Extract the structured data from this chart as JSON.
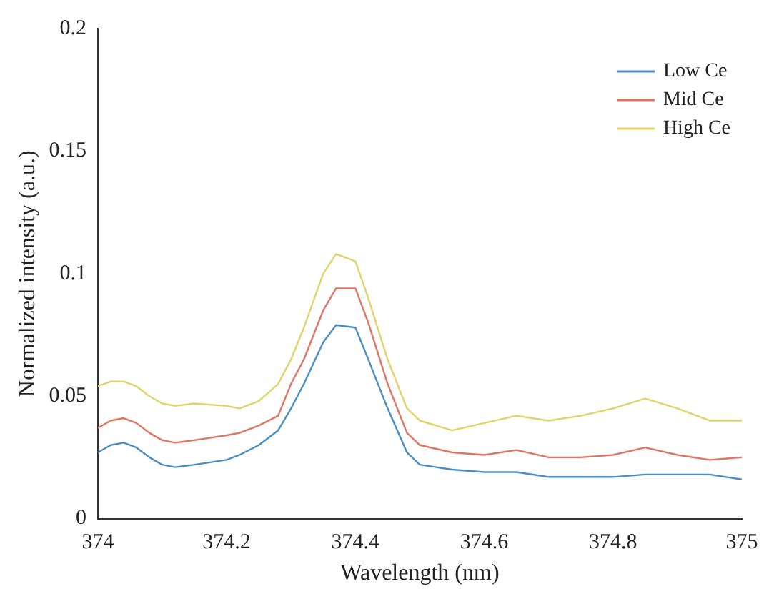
{
  "chart_data": {
    "type": "line",
    "xlabel": "Wavelength (nm)",
    "ylabel": "Normalized intensity (a.u.)",
    "x": [
      374,
      374.02,
      374.04,
      374.06,
      374.08,
      374.1,
      374.12,
      374.15,
      374.2,
      374.22,
      374.25,
      374.28,
      374.3,
      374.32,
      374.35,
      374.37,
      374.4,
      374.42,
      374.45,
      374.48,
      374.5,
      374.55,
      374.6,
      374.65,
      374.7,
      374.75,
      374.8,
      374.85,
      374.9,
      374.95,
      375
    ],
    "series": [
      {
        "name": "Low Ce",
        "color": "#4a8fc4",
        "values": [
          0.027,
          0.03,
          0.031,
          0.029,
          0.025,
          0.022,
          0.021,
          0.022,
          0.024,
          0.026,
          0.03,
          0.036,
          0.045,
          0.055,
          0.072,
          0.079,
          0.078,
          0.065,
          0.045,
          0.027,
          0.022,
          0.02,
          0.019,
          0.019,
          0.017,
          0.017,
          0.017,
          0.018,
          0.018,
          0.018,
          0.016
        ]
      },
      {
        "name": "Mid Ce",
        "color": "#e07563",
        "values": [
          0.037,
          0.04,
          0.041,
          0.039,
          0.035,
          0.032,
          0.031,
          0.032,
          0.034,
          0.035,
          0.038,
          0.042,
          0.055,
          0.065,
          0.085,
          0.094,
          0.094,
          0.08,
          0.055,
          0.035,
          0.03,
          0.027,
          0.026,
          0.028,
          0.025,
          0.025,
          0.026,
          0.029,
          0.026,
          0.024,
          0.025
        ]
      },
      {
        "name": "High Ce",
        "color": "#e2d268",
        "values": [
          0.054,
          0.056,
          0.056,
          0.054,
          0.05,
          0.047,
          0.046,
          0.047,
          0.046,
          0.045,
          0.048,
          0.055,
          0.065,
          0.078,
          0.1,
          0.108,
          0.105,
          0.09,
          0.065,
          0.045,
          0.04,
          0.036,
          0.039,
          0.042,
          0.04,
          0.042,
          0.045,
          0.049,
          0.045,
          0.04,
          0.04
        ]
      }
    ],
    "xlim": [
      374,
      375
    ],
    "xticks": [
      374,
      374.2,
      374.4,
      374.6,
      374.8,
      375
    ],
    "ylim": [
      0,
      0.2
    ],
    "yticks": [
      0,
      0.05,
      0.1,
      0.15,
      0.2
    ],
    "grid": false,
    "legend": "top right",
    "marker": "none",
    "line_style": "solid"
  }
}
